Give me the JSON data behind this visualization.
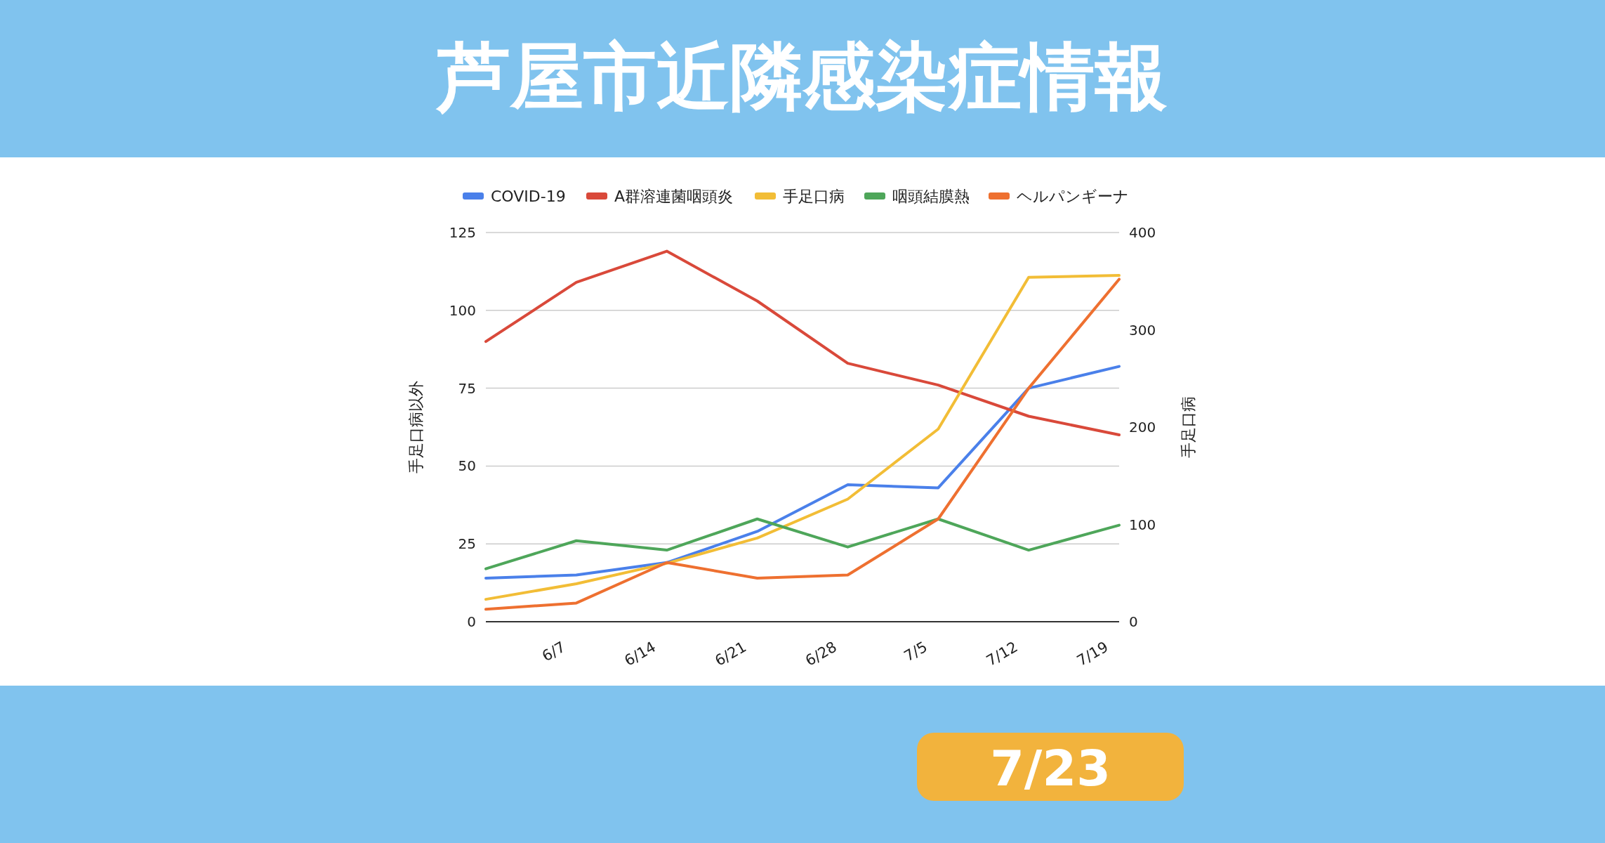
{
  "chart_data": {
    "type": "line",
    "title": "芦屋市近隣感染症情報",
    "ylabel": "手足口病以外",
    "y2label": "手足口病",
    "categories": [
      null,
      "6/7",
      "6/14",
      "6/21",
      "6/28",
      "7/5",
      "7/12",
      "7/19"
    ],
    "series": [
      {
        "name": "COVID-19",
        "color": "#4a80ea",
        "values": [
          14,
          15,
          19,
          29,
          44,
          43,
          75,
          82
        ]
      },
      {
        "name": "A群溶連菌咽頭炎",
        "color": "#d9493a",
        "values": [
          90,
          109,
          119,
          103,
          83,
          76,
          66,
          60
        ]
      },
      {
        "name": "手足口病",
        "color": "#f2bd36",
        "axis": "y2",
        "values": [
          23,
          39,
          60,
          86,
          126,
          198,
          354,
          356
        ]
      },
      {
        "name": "咽頭結膜熱",
        "color": "#4ea65a",
        "values": [
          17,
          26,
          23,
          33,
          24,
          33,
          23,
          31
        ]
      },
      {
        "name": "ヘルパンギーナ",
        "color": "#ee7030",
        "values": [
          4,
          6,
          19,
          14,
          15,
          33,
          75,
          110
        ]
      }
    ],
    "ylim": [
      0,
      125
    ],
    "yticks": [
      0,
      25,
      50,
      75,
      100,
      125
    ],
    "y2lim": [
      0,
      400
    ],
    "y2ticks": [
      0,
      100,
      200,
      300,
      400
    ],
    "grid": "y",
    "legend": "top",
    "annotations": [
      "7/23"
    ]
  }
}
